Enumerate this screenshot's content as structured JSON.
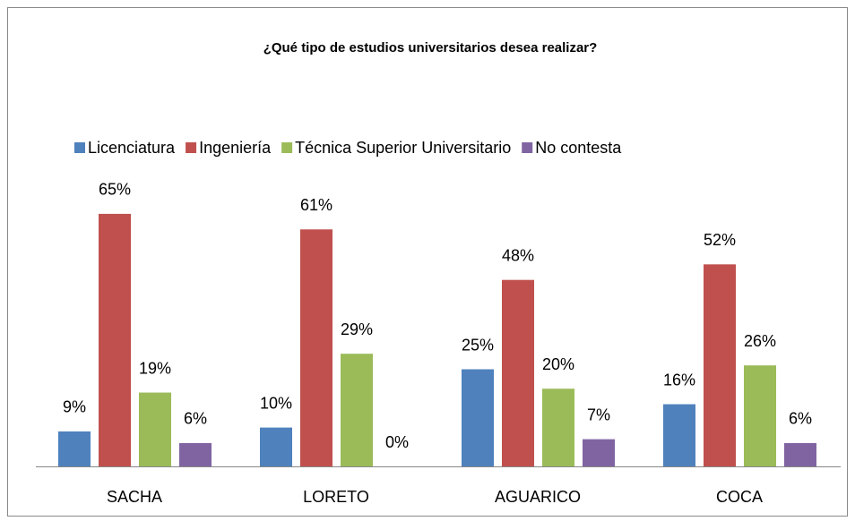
{
  "chart_data": {
    "type": "bar",
    "title": "¿Qué tipo de estudios universitarios desea realizar?",
    "categories": [
      "SACHA",
      "LORETO",
      "AGUARICO",
      "COCA"
    ],
    "series": [
      {
        "name": "Licenciatura",
        "color": "#4f81bd",
        "values": [
          9,
          10,
          25,
          16
        ],
        "value_labels": [
          "9%",
          "10%",
          "25%",
          "16%"
        ]
      },
      {
        "name": "Ingeniería",
        "color": "#c0504d",
        "values": [
          65,
          61,
          48,
          52
        ],
        "value_labels": [
          "65%",
          "61%",
          "48%",
          "52%"
        ]
      },
      {
        "name": "Técnica Superior Universitario",
        "color": "#9bbb59",
        "values": [
          19,
          29,
          20,
          26
        ],
        "value_labels": [
          "19%",
          "29%",
          "20%",
          "26%"
        ]
      },
      {
        "name": "No contesta",
        "color": "#8064a2",
        "values": [
          6,
          0,
          7,
          6
        ],
        "value_labels": [
          "6%",
          "0%",
          "7%",
          "6%"
        ]
      }
    ],
    "legend": "top"
  }
}
